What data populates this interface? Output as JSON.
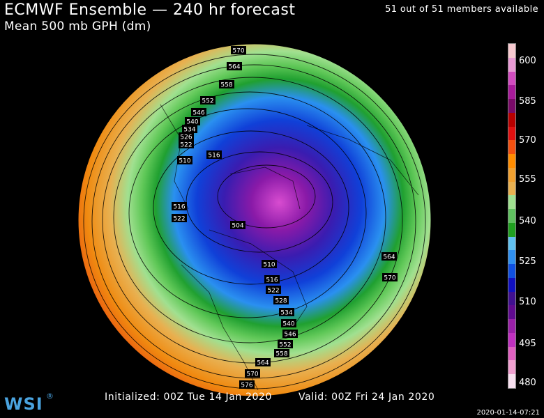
{
  "header": {
    "title": "ECMWF Ensemble — 240 hr forecast",
    "subtitle": "Mean 500 mb GPH (dm)",
    "members": "51 out of 51 members available"
  },
  "footer": {
    "initialized": "Initialized: 00Z Tue 14 Jan 2020",
    "valid": "Valid: 00Z Fri 24 Jan 2020",
    "timestamp": "2020-01-14-07:21",
    "logo": "WSI"
  },
  "colorbar": {
    "labels": [
      "600",
      "585",
      "570",
      "555",
      "540",
      "525",
      "510",
      "495",
      "480"
    ],
    "colors": [
      "#f7c9cf",
      "#e89ad4",
      "#d24cc0",
      "#a81a9a",
      "#7a0a68",
      "#b80000",
      "#e01010",
      "#f25010",
      "#ff8c00",
      "#f0a030",
      "#e8b050",
      "#a0e090",
      "#60c060",
      "#20a020",
      "#60c0f0",
      "#3090f0",
      "#1050e0",
      "#1010c0",
      "#401090",
      "#600a90",
      "#9a20a8",
      "#c030c0",
      "#e060c0",
      "#f0a0d0",
      "#f8e0f0"
    ]
  },
  "contour_labels": [
    {
      "text": "570"
    },
    {
      "text": "564"
    },
    {
      "text": "558"
    },
    {
      "text": "552"
    },
    {
      "text": "546"
    },
    {
      "text": "540"
    },
    {
      "text": "534"
    },
    {
      "text": "526"
    },
    {
      "text": "522"
    },
    {
      "text": "510"
    },
    {
      "text": "516"
    },
    {
      "text": "516"
    },
    {
      "text": "522"
    },
    {
      "text": "504"
    },
    {
      "text": "510"
    },
    {
      "text": "516"
    },
    {
      "text": "522"
    },
    {
      "text": "528"
    },
    {
      "text": "534"
    },
    {
      "text": "540"
    },
    {
      "text": "546"
    },
    {
      "text": "552"
    },
    {
      "text": "558"
    },
    {
      "text": "564"
    },
    {
      "text": "570"
    },
    {
      "text": "576"
    },
    {
      "text": "564"
    },
    {
      "text": "570"
    }
  ]
}
